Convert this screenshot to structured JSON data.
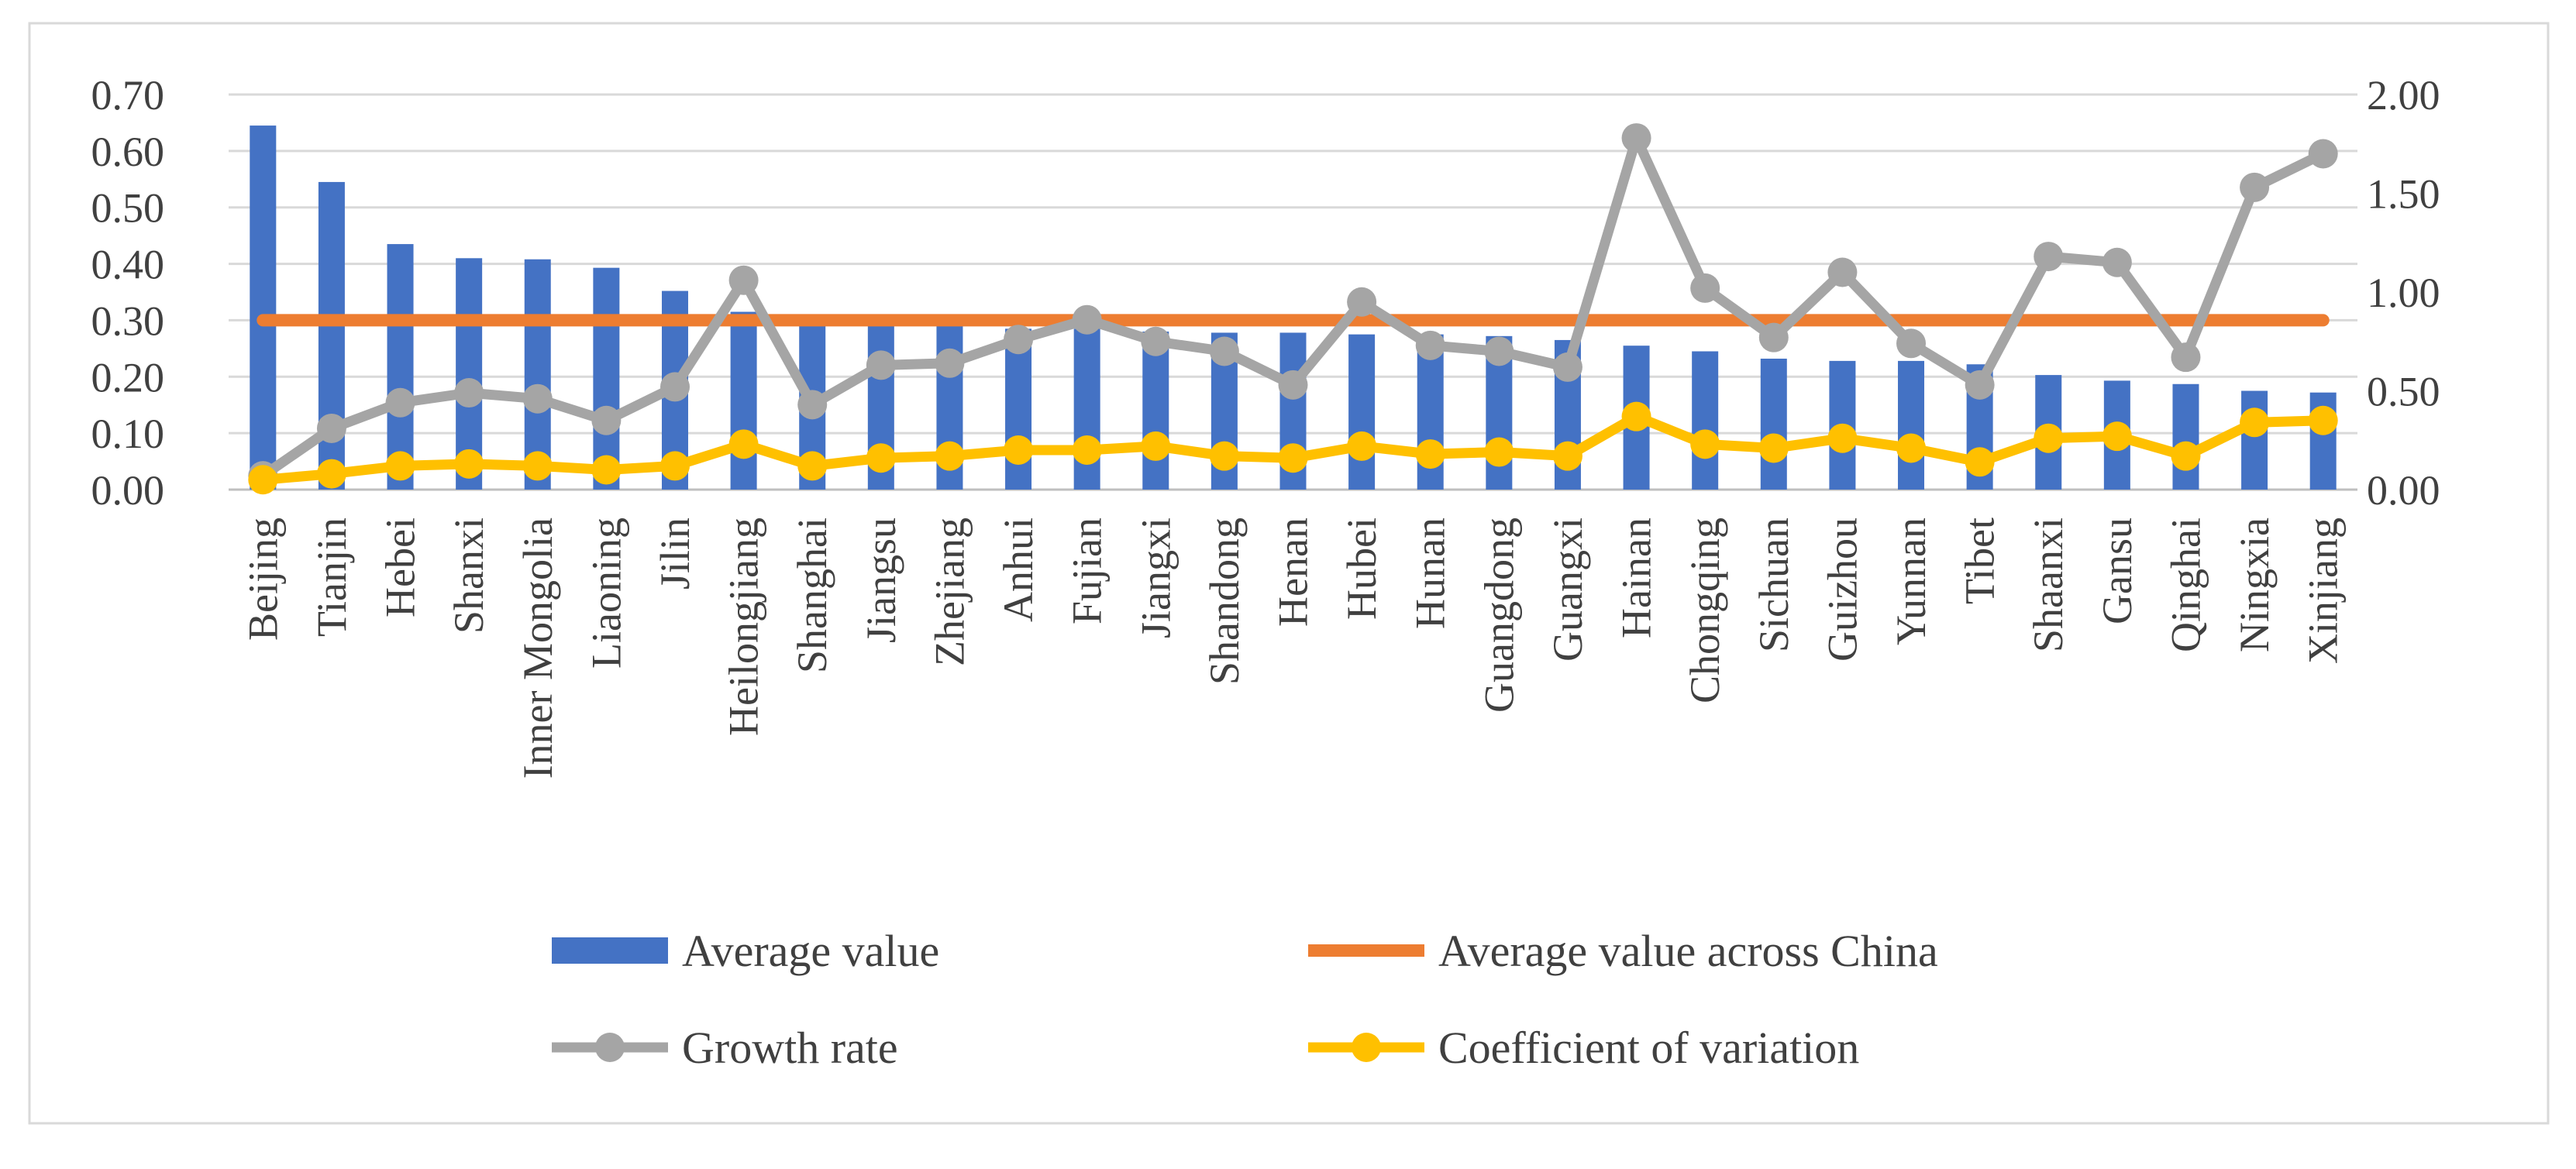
{
  "chart_data": {
    "type": "bar",
    "title": "",
    "xlabel": "",
    "ylabel": "",
    "categories": [
      "Beijing",
      "Tianjin",
      "Hebei",
      "Shanxi",
      "Inner Mongolia",
      "Liaoning",
      "Jilin",
      "Heilongjiang",
      "Shanghai",
      "Jiangsu",
      "Zhejiang",
      "Anhui",
      "Fujian",
      "Jiangxi",
      "Shandong",
      "Henan",
      "Hubei",
      "Hunan",
      "Guangdong",
      "Guangxi",
      "Hainan",
      "Chongqing",
      "Sichuan",
      "Guizhou",
      "Yunnan",
      "Tibet",
      "Shaanxi",
      "Gansu",
      "Qinghai",
      "Ningxia",
      "Xinjiang"
    ],
    "ylim_left": [
      0,
      0.7
    ],
    "ylim_right": [
      0,
      2.0
    ],
    "yticks_left": [
      "0.00",
      "0.10",
      "0.20",
      "0.30",
      "0.40",
      "0.50",
      "0.60",
      "0.70"
    ],
    "yticks_right": [
      "0.00",
      "0.50",
      "1.00",
      "1.50",
      "2.00"
    ],
    "grid": true,
    "legend_position": "bottom",
    "series": [
      {
        "name": "Average value",
        "kind": "bar",
        "axis": "left",
        "color": "#4472C4",
        "values": [
          0.645,
          0.545,
          0.435,
          0.41,
          0.408,
          0.393,
          0.352,
          0.315,
          0.29,
          0.29,
          0.29,
          0.285,
          0.285,
          0.28,
          0.278,
          0.278,
          0.275,
          0.275,
          0.272,
          0.265,
          0.255,
          0.245,
          0.232,
          0.228,
          0.228,
          0.222,
          0.203,
          0.193,
          0.187,
          0.175,
          0.172
        ]
      },
      {
        "name": "Average value across China",
        "kind": "line",
        "axis": "left",
        "color": "#ED7D31",
        "values": [
          0.3,
          0.3,
          0.3,
          0.3,
          0.3,
          0.3,
          0.3,
          0.3,
          0.3,
          0.3,
          0.3,
          0.3,
          0.3,
          0.3,
          0.3,
          0.3,
          0.3,
          0.3,
          0.3,
          0.3,
          0.3,
          0.3,
          0.3,
          0.3,
          0.3,
          0.3,
          0.3,
          0.3,
          0.3,
          0.3,
          0.3
        ]
      },
      {
        "name": "Growth rate",
        "kind": "line-marker",
        "axis": "right",
        "color": "#A5A5A5",
        "values": [
          0.07,
          0.31,
          0.44,
          0.49,
          0.46,
          0.35,
          0.52,
          1.06,
          0.43,
          0.63,
          0.64,
          0.76,
          0.86,
          0.75,
          0.7,
          0.53,
          0.95,
          0.73,
          0.7,
          0.62,
          1.78,
          1.02,
          0.77,
          1.1,
          0.74,
          0.53,
          1.18,
          1.15,
          0.67,
          1.53,
          1.7
        ]
      },
      {
        "name": "Coefficient of variation",
        "kind": "line-marker",
        "axis": "right",
        "color": "#FFC000",
        "values": [
          0.05,
          0.08,
          0.12,
          0.13,
          0.12,
          0.1,
          0.12,
          0.23,
          0.12,
          0.16,
          0.17,
          0.2,
          0.2,
          0.22,
          0.17,
          0.16,
          0.22,
          0.18,
          0.19,
          0.17,
          0.37,
          0.23,
          0.21,
          0.26,
          0.21,
          0.14,
          0.26,
          0.27,
          0.17,
          0.34,
          0.35
        ]
      }
    ]
  }
}
